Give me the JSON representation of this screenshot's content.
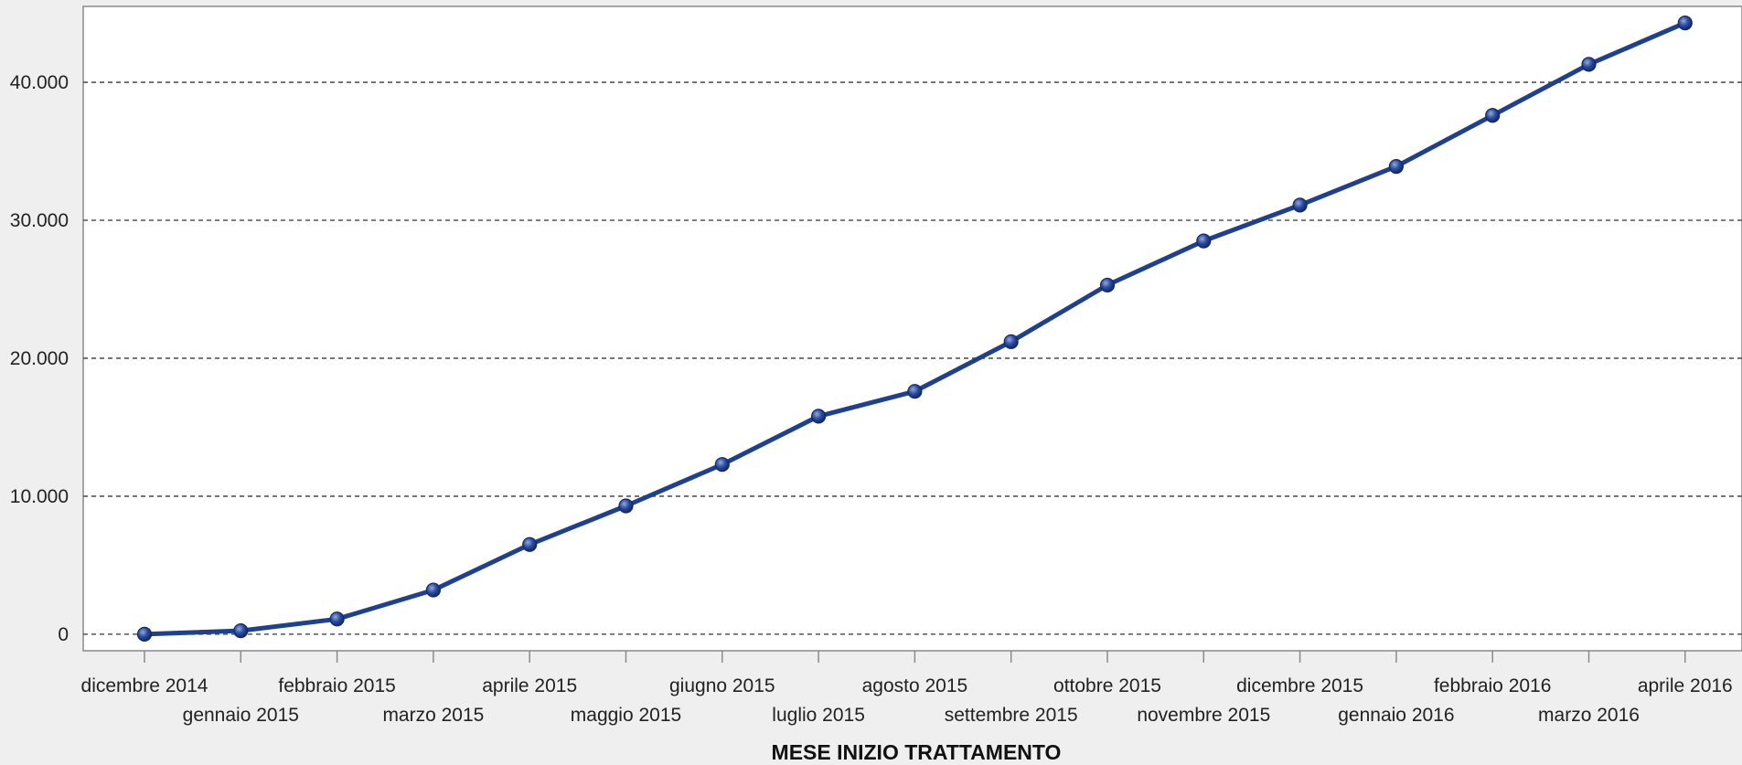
{
  "chart_data": {
    "type": "line",
    "title": "",
    "xlabel": "MESE INIZIO TRATTAMENTO",
    "ylabel": "",
    "categories": [
      "dicembre 2014",
      "gennaio 2015",
      "febbraio 2015",
      "marzo 2015",
      "aprile 2015",
      "maggio 2015",
      "giugno 2015",
      "luglio 2015",
      "agosto 2015",
      "settembre 2015",
      "ottobre 2015",
      "novembre 2015",
      "dicembre 2015",
      "gennaio 2016",
      "febbraio 2016",
      "marzo 2016",
      "aprile 2016"
    ],
    "series": [
      {
        "values": [
          0,
          250,
          1100,
          3200,
          6500,
          9300,
          12300,
          15800,
          17600,
          21200,
          25300,
          28500,
          31100,
          33900,
          37600,
          41300,
          44300
        ]
      }
    ],
    "ylim": [
      -1200,
      45500
    ],
    "yticks": [
      0,
      10000,
      20000,
      30000,
      40000
    ],
    "ytick_labels": [
      "0",
      "10.000",
      "20.000",
      "30.000",
      "40.000"
    ],
    "grid": "horizontal-dashed",
    "legend": "none",
    "colors": {
      "line": "#1f3f8f",
      "marker": "#2a4a9a",
      "plot_bg": "#ffffff",
      "page_bg": "#efefef",
      "grid": "#555555"
    }
  }
}
